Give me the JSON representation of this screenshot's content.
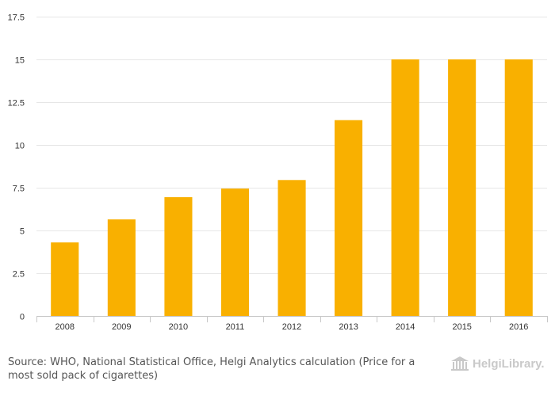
{
  "chart_data": {
    "type": "bar",
    "categories": [
      "2008",
      "2009",
      "2010",
      "2011",
      "2012",
      "2013",
      "2014",
      "2015",
      "2016"
    ],
    "values": [
      4.3,
      5.65,
      6.95,
      7.45,
      7.95,
      11.45,
      15,
      15,
      15
    ],
    "ylim": [
      0,
      17.5
    ],
    "yticks": [
      "0",
      "2.5",
      "5",
      "7.5",
      "10",
      "12.5",
      "15",
      "17.5"
    ],
    "grid": true,
    "title": "",
    "xlabel": "",
    "ylabel": "",
    "bar_color": "#F9B000"
  },
  "footer": {
    "source_label": "Source:",
    "source_text": "WHO, National Statistical Office, Helgi Analytics calculation (Price for a most sold pack of cigarettes)"
  },
  "brand": {
    "name": "HelgiLibrary.",
    "icon": "library-building-icon",
    "color": "#c9c9c9"
  }
}
